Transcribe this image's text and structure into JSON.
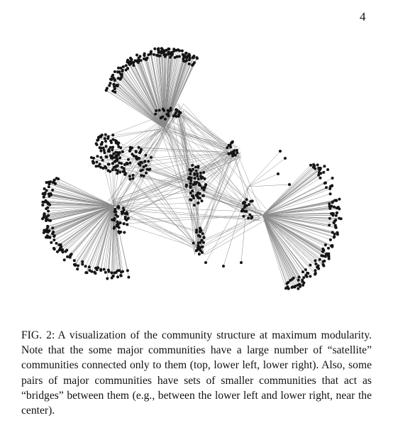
{
  "page": {
    "number": "4"
  },
  "figure": {
    "description_hidden": false,
    "caption_label": "FIG. 2:",
    "caption_text": "A visualization of the community structure at maximum modularity. Note that the some major communities have a large number of “satellite” communities connected only to them (top, lower left, lower right). Also, some pairs of major communities have sets of smaller communities that act as “bridges” between them (e.g., between the lower left and lower right, near the center).",
    "edge_color": "#8a8a8a",
    "node_color": "#151515"
  }
}
